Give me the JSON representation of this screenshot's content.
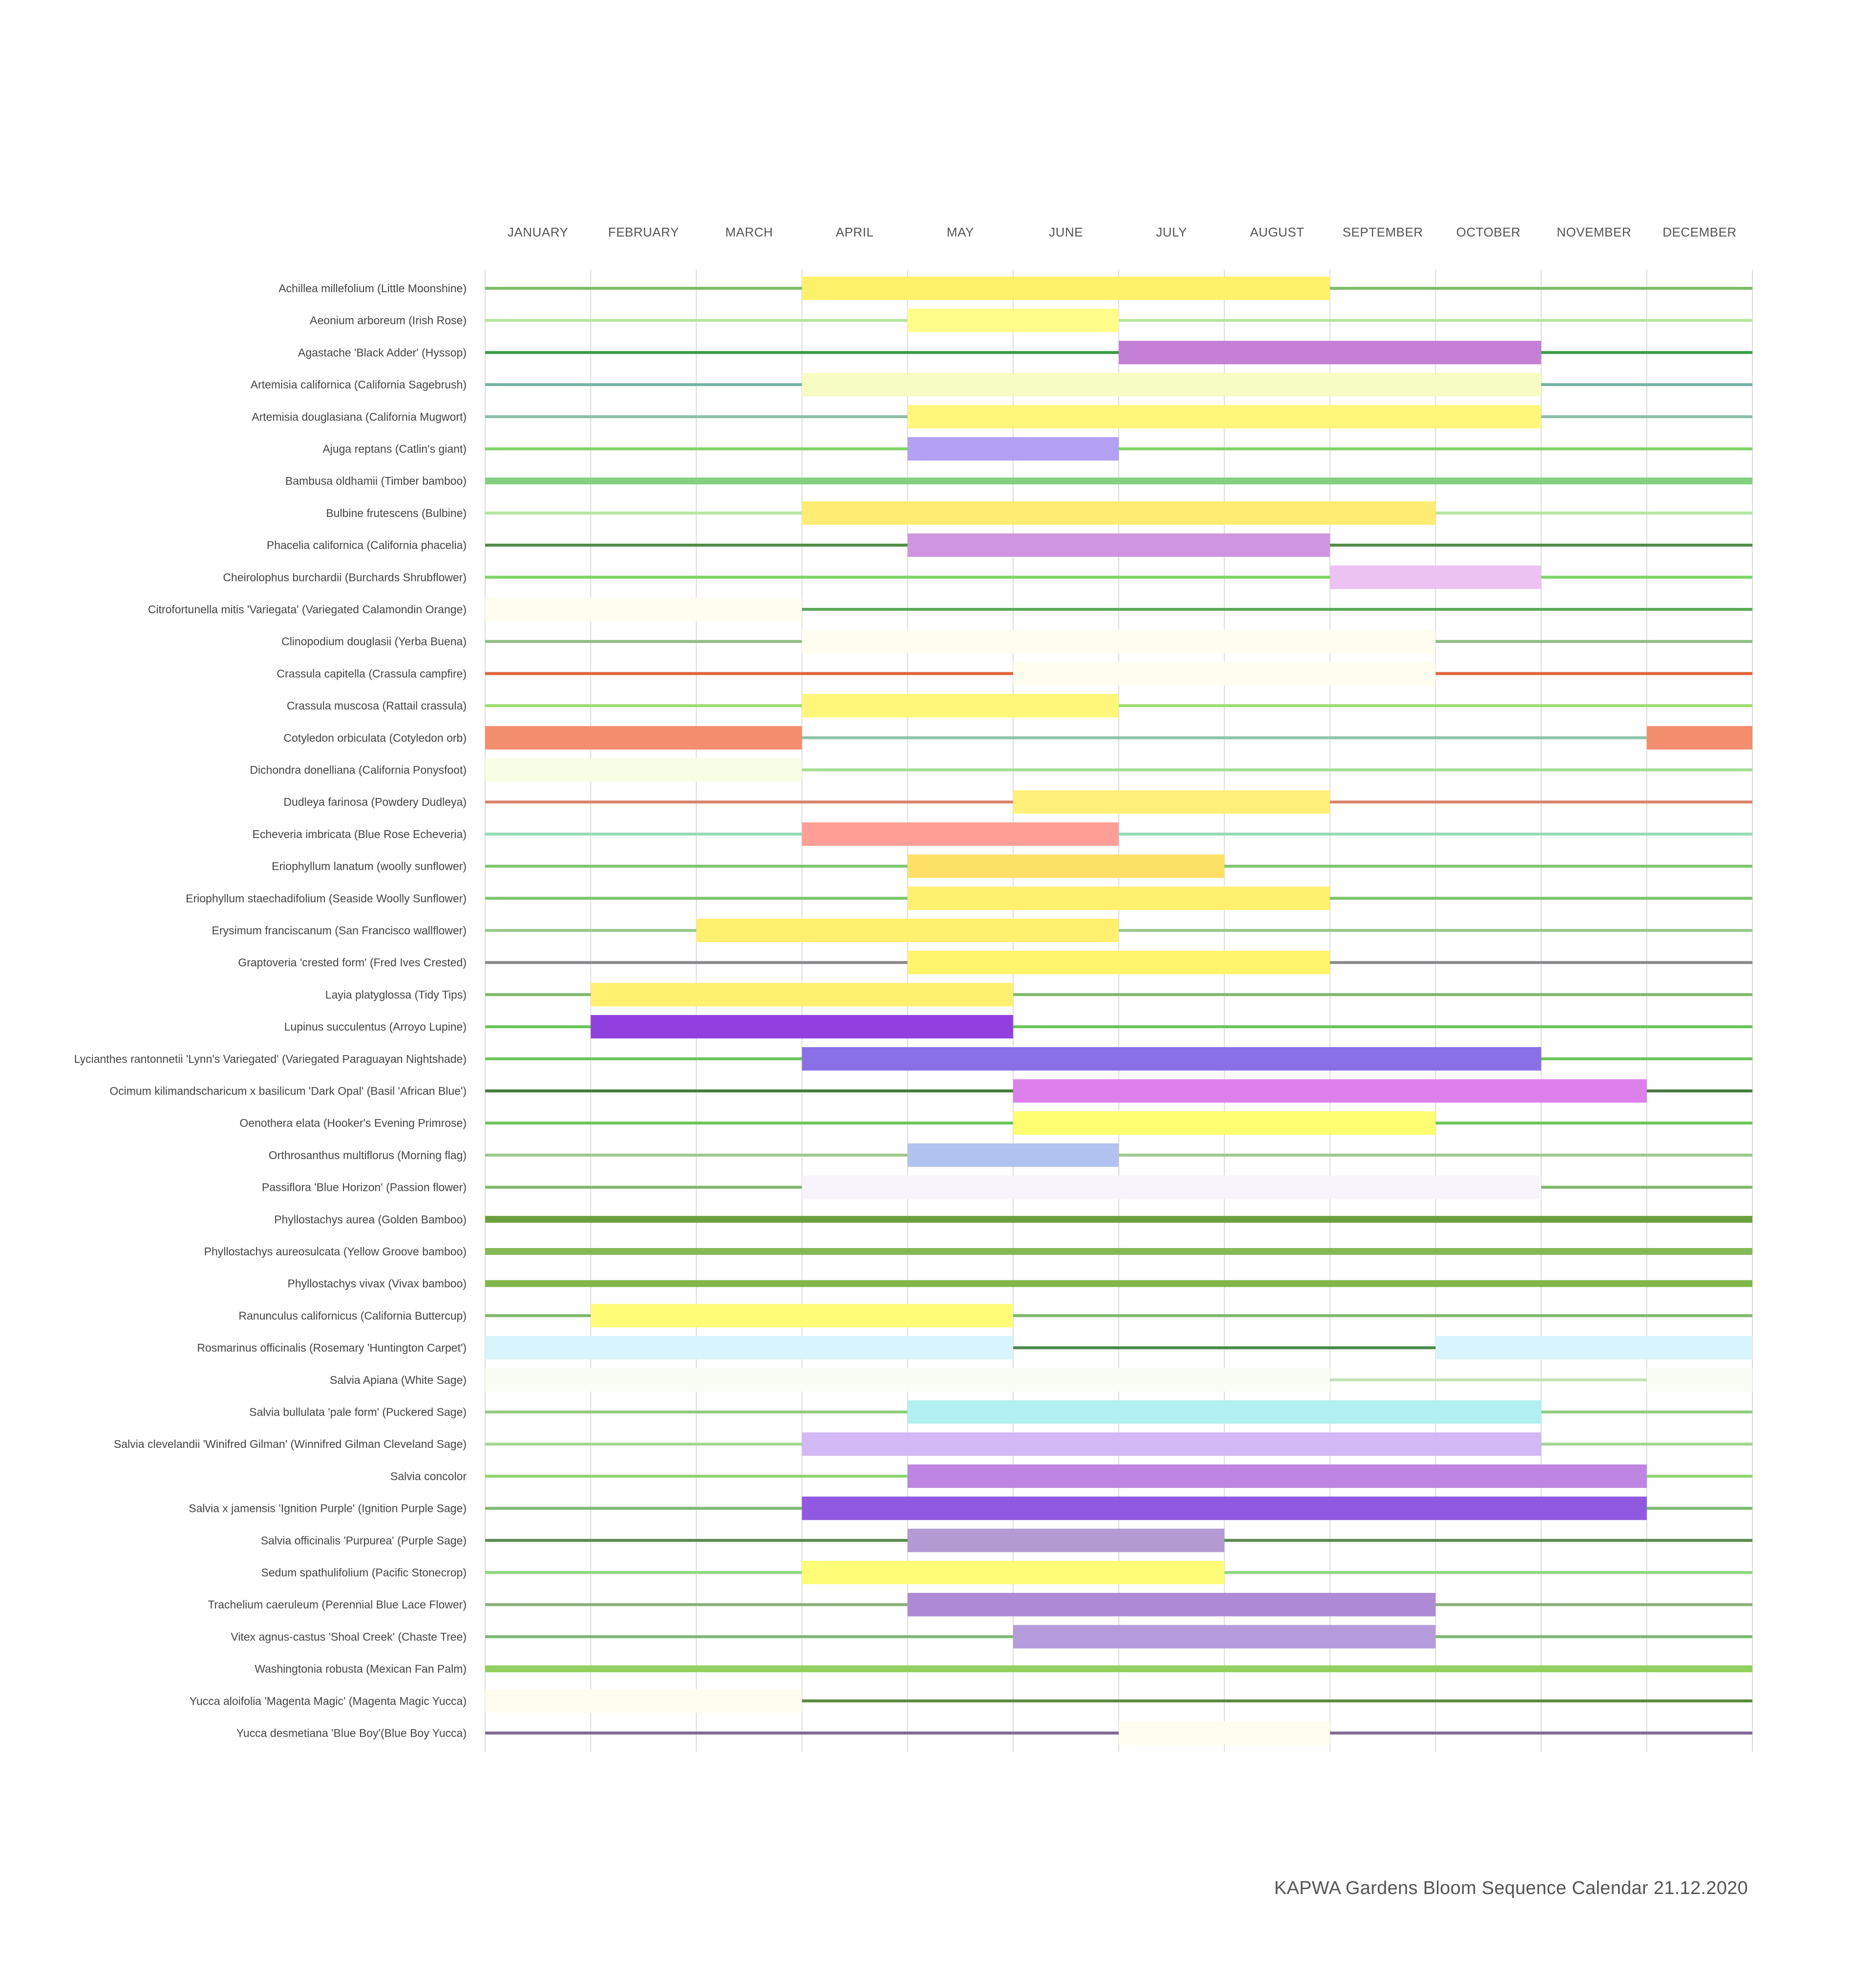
{
  "caption": "KAPWA Gardens Bloom Sequence Calendar 21.12.2020",
  "chart_data": {
    "type": "gantt",
    "title": "",
    "months": [
      "JANUARY",
      "FEBRUARY",
      "MARCH",
      "APRIL",
      "MAY",
      "JUNE",
      "JULY",
      "AUGUST",
      "SEPTEMBER",
      "OCTOBER",
      "NOVEMBER",
      "DECEMBER"
    ],
    "x_unit": "month (0 = start of January, 12 = end of December)",
    "grid": true,
    "rows": [
      {
        "name": "Achillea millefolium (Little Moonshine)",
        "line_color": "#7fba6a",
        "blooms": [
          {
            "start": 3,
            "end": 8,
            "color": "#fff16a"
          }
        ]
      },
      {
        "name": "Aeonium arboreum (Irish Rose)",
        "line_color": "#b7e6a0",
        "blooms": [
          {
            "start": 4,
            "end": 6,
            "color": "#fffe8a"
          }
        ]
      },
      {
        "name": "Agastache 'Black Adder' (Hyssop)",
        "line_color": "#3a9a4a",
        "blooms": [
          {
            "start": 6,
            "end": 10,
            "color": "#c47fd6"
          }
        ]
      },
      {
        "name": "Artemisia californica (California Sagebrush)",
        "line_color": "#76b2a6",
        "blooms": [
          {
            "start": 3,
            "end": 10,
            "color": "#f6fcc2"
          }
        ]
      },
      {
        "name": "Artemisia douglasiana (California Mugwort)",
        "line_color": "#8fbca8",
        "blooms": [
          {
            "start": 4,
            "end": 10,
            "color": "#fff67a"
          }
        ]
      },
      {
        "name": "Ajuga reptans (Catlin's giant)",
        "line_color": "#7ed466",
        "blooms": [
          {
            "start": 4,
            "end": 6,
            "color": "#b3a0f2"
          }
        ]
      },
      {
        "name": "Bambusa oldhamii (Timber bamboo)",
        "line_color": "#84d080",
        "blooms": []
      },
      {
        "name": "Bulbine frutescens (Bulbine)",
        "line_color": "#b7e6a0",
        "blooms": [
          {
            "start": 3,
            "end": 9,
            "color": "#ffec72"
          }
        ]
      },
      {
        "name": "Phacelia californica (California phacelia)",
        "line_color": "#4d8a42",
        "blooms": [
          {
            "start": 4,
            "end": 8,
            "color": "#d095e0"
          }
        ]
      },
      {
        "name": "Cheirolophus burchardii (Burchards Shrubflower)",
        "line_color": "#7ed466",
        "blooms": [
          {
            "start": 8,
            "end": 10,
            "color": "#ecc2f2"
          }
        ]
      },
      {
        "name": "Citrofortunella mitis 'Variegata' (Variegated Calamondin Orange)",
        "line_color": "#5da85a",
        "blooms": [
          {
            "start": 0,
            "end": 3,
            "color": "#fffdf0"
          }
        ]
      },
      {
        "name": "Clinopodium douglasii (Yerba Buena)",
        "line_color": "#8fbc86",
        "blooms": [
          {
            "start": 3,
            "end": 9,
            "color": "#fffdf0"
          }
        ]
      },
      {
        "name": "Crassula capitella (Crassula campfire)",
        "line_color": "#e06238",
        "blooms": [
          {
            "start": 5,
            "end": 9,
            "color": "#fffdf0"
          }
        ]
      },
      {
        "name": "Crassula muscosa (Rattail crassula)",
        "line_color": "#9edc70",
        "blooms": [
          {
            "start": 3,
            "end": 6,
            "color": "#fff67a"
          }
        ]
      },
      {
        "name": "Cotyledon orbiculata (Cotyledon orb)",
        "line_color": "#8fc4a6",
        "blooms": [
          {
            "start": 0,
            "end": 3,
            "color": "#f28e6e"
          },
          {
            "start": 11,
            "end": 12,
            "color": "#f28e6e"
          }
        ]
      },
      {
        "name": "Dichondra donelliana (California Ponysfoot)",
        "line_color": "#a8dc94",
        "blooms": [
          {
            "start": 0,
            "end": 3,
            "color": "#f8fde6"
          }
        ]
      },
      {
        "name": "Dudleya farinosa (Powdery Dudleya)",
        "line_color": "#d8846a",
        "blooms": [
          {
            "start": 5,
            "end": 8,
            "color": "#fff07a"
          }
        ]
      },
      {
        "name": "Echeveria imbricata (Blue Rose Echeveria)",
        "line_color": "#94dcb4",
        "blooms": [
          {
            "start": 3,
            "end": 6,
            "color": "#ff9e96"
          }
        ]
      },
      {
        "name": "Eriophyllum lanatum (woolly sunflower)",
        "line_color": "#7ec46a",
        "blooms": [
          {
            "start": 4,
            "end": 7,
            "color": "#fde066"
          }
        ]
      },
      {
        "name": "Eriophyllum staechadifolium (Seaside Woolly Sunflower)",
        "line_color": "#7ec46a",
        "blooms": [
          {
            "start": 4,
            "end": 8,
            "color": "#fff070"
          }
        ]
      },
      {
        "name": "Erysimum franciscanum (San Francisco wallflower)",
        "line_color": "#9cc88e",
        "blooms": [
          {
            "start": 2,
            "end": 6,
            "color": "#fff070"
          }
        ]
      },
      {
        "name": "Graptoveria 'crested form' (Fred Ives Crested)",
        "line_color": "#8a8a8e",
        "blooms": [
          {
            "start": 4,
            "end": 8,
            "color": "#fff46a"
          }
        ]
      },
      {
        "name": "Layia platyglossa (Tidy Tips)",
        "line_color": "#7eb86a",
        "blooms": [
          {
            "start": 1,
            "end": 5,
            "color": "#fff070"
          }
        ]
      },
      {
        "name": "Lupinus succulentus (Arroyo Lupine)",
        "line_color": "#6cc45a",
        "blooms": [
          {
            "start": 1,
            "end": 5,
            "color": "#9140e0"
          }
        ]
      },
      {
        "name": "Lycianthes rantonnetii 'Lynn's Variegated' (Variegated Paraguayan Nightshade)",
        "line_color": "#6cc45a",
        "blooms": [
          {
            "start": 3,
            "end": 10,
            "color": "#8a70e6"
          }
        ]
      },
      {
        "name": "Ocimum kilimandscharicum x basilicum 'Dark Opal' (Basil 'African Blue')",
        "line_color": "#467a3e",
        "blooms": [
          {
            "start": 5,
            "end": 11,
            "color": "#de80ec"
          }
        ]
      },
      {
        "name": "Oenothera elata (Hooker's Evening Primrose)",
        "line_color": "#6cc45a",
        "blooms": [
          {
            "start": 5,
            "end": 9,
            "color": "#fffe70"
          }
        ]
      },
      {
        "name": "Orthrosanthus multiflorus (Morning flag)",
        "line_color": "#9cc88e",
        "blooms": [
          {
            "start": 4,
            "end": 6,
            "color": "#b2c2ee"
          }
        ]
      },
      {
        "name": "Passiflora 'Blue Horizon' (Passion flower)",
        "line_color": "#7eb86a",
        "blooms": [
          {
            "start": 3,
            "end": 10,
            "color": "#f8f4fc"
          }
        ]
      },
      {
        "name": "Phyllostachys aurea (Golden Bamboo)",
        "line_color": "#6ca03e",
        "blooms": []
      },
      {
        "name": "Phyllostachys aureosulcata (Yellow Groove bamboo)",
        "line_color": "#84b856",
        "blooms": []
      },
      {
        "name": "Phyllostachys vivax (Vivax bamboo)",
        "line_color": "#80b64a",
        "blooms": []
      },
      {
        "name": "Ranunculus californicus (California Buttercup)",
        "line_color": "#7eb86a",
        "blooms": [
          {
            "start": 1,
            "end": 5,
            "color": "#fffc78"
          }
        ]
      },
      {
        "name": "Rosmarinus officinalis (Rosemary 'Huntington Carpet')",
        "line_color": "#4c8a4a",
        "blooms": [
          {
            "start": 0,
            "end": 5,
            "color": "#d8f4fc"
          },
          {
            "start": 9,
            "end": 12,
            "color": "#d8f4fc"
          }
        ]
      },
      {
        "name": "Salvia Apiana (White Sage)",
        "line_color": "#c4e2b0",
        "blooms": [
          {
            "start": 0,
            "end": 8,
            "color": "#fafdf4"
          },
          {
            "start": 11,
            "end": 12,
            "color": "#fafdf4"
          }
        ]
      },
      {
        "name": "Salvia bullulata 'pale form'  (Puckered Sage)",
        "line_color": "#8fcc80",
        "blooms": [
          {
            "start": 4,
            "end": 10,
            "color": "#b0f0f2"
          }
        ]
      },
      {
        "name": "Salvia clevelandii 'Winifred Gilman' (Winnifred Gilman Cleveland Sage)",
        "line_color": "#a0d890",
        "blooms": [
          {
            "start": 3,
            "end": 10,
            "color": "#d2b8f4"
          }
        ]
      },
      {
        "name": "Salvia concolor",
        "line_color": "#8fd470",
        "blooms": [
          {
            "start": 4,
            "end": 11,
            "color": "#be86e2"
          }
        ]
      },
      {
        "name": "Salvia x jamensis 'Ignition Purple' (Ignition Purple Sage)",
        "line_color": "#7aba72",
        "blooms": [
          {
            "start": 3,
            "end": 11,
            "color": "#9158e0"
          }
        ]
      },
      {
        "name": "Salvia officinalis 'Purpurea' (Purple Sage)",
        "line_color": "#5a8a50",
        "blooms": [
          {
            "start": 4,
            "end": 7,
            "color": "#b49ad2"
          }
        ]
      },
      {
        "name": "Sedum spathulifolium (Pacific Stonecrop)",
        "line_color": "#8fd880",
        "blooms": [
          {
            "start": 3,
            "end": 7,
            "color": "#fffc78"
          }
        ]
      },
      {
        "name": "Trachelium caeruleum (Perennial Blue Lace Flower)",
        "line_color": "#8ab078",
        "blooms": [
          {
            "start": 4,
            "end": 9,
            "color": "#ae8ad6"
          }
        ]
      },
      {
        "name": "Vitex agnus-castus 'Shoal Creek' (Chaste Tree)",
        "line_color": "#7aba72",
        "blooms": [
          {
            "start": 5,
            "end": 9,
            "color": "#b49cdc"
          }
        ]
      },
      {
        "name": "Washingtonia robusta (Mexican Fan Palm)",
        "line_color": "#94d060",
        "blooms": []
      },
      {
        "name": "Yucca aloifolia 'Magenta Magic' (Magenta Magic Yucca)",
        "line_color": "#5a8a3c",
        "blooms": [
          {
            "start": 0,
            "end": 3,
            "color": "#fffcf0"
          }
        ]
      },
      {
        "name": "Yucca desmetiana 'Blue Boy'(Blue Boy Yucca)",
        "line_color": "#7e6a94",
        "blooms": [
          {
            "start": 6,
            "end": 8,
            "color": "#fffcf0"
          }
        ]
      }
    ]
  }
}
